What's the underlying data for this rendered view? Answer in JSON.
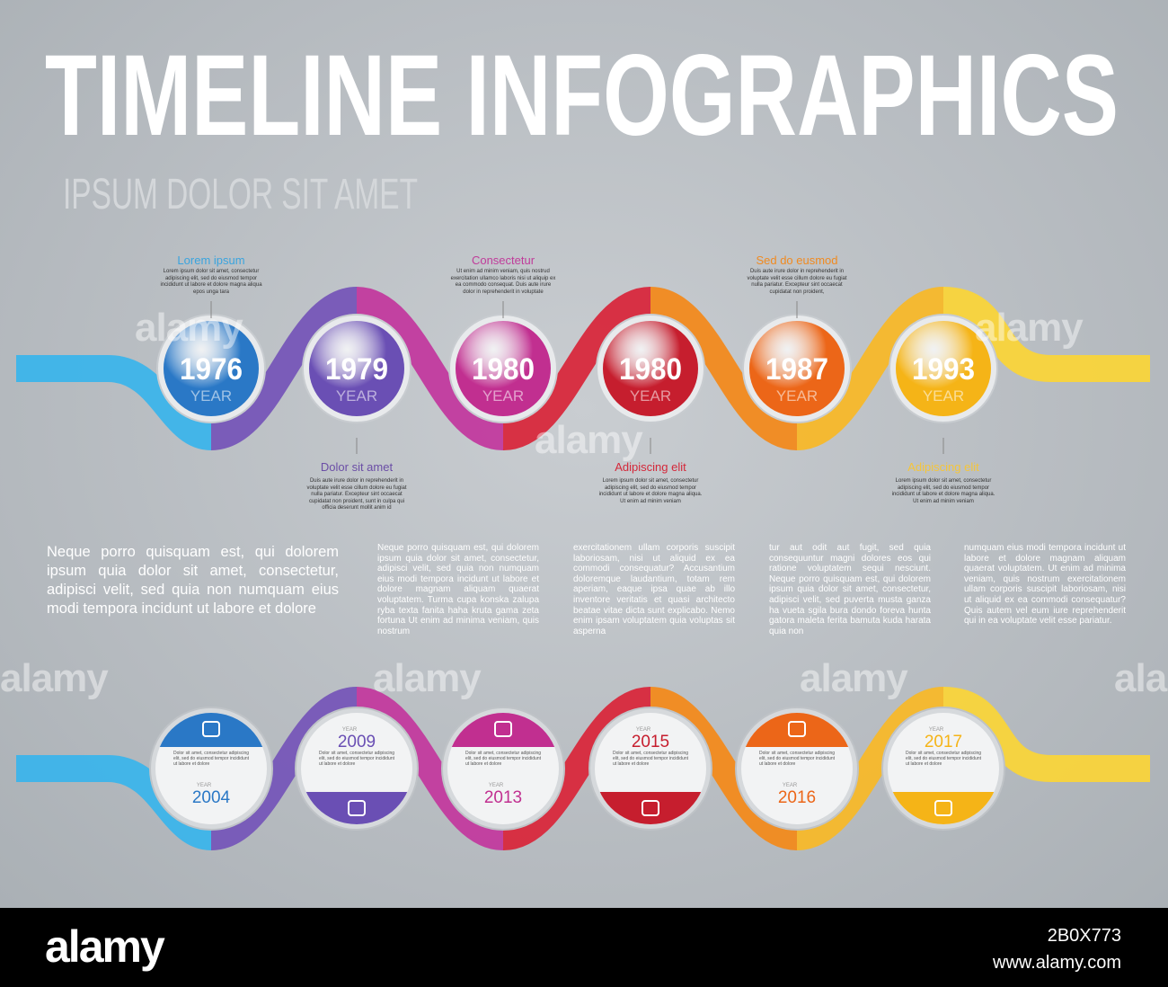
{
  "title": "TIMELINE INFOGRAPHICS",
  "subtitle": "IPSUM DOLOR SIT AMET",
  "top_timeline": [
    {
      "year": "1976",
      "year_label": "YEAR",
      "heading": "Lorem  ipsum",
      "text": "Lorem ipsum dolor sit amet, consectetur adipiscing elit, sed do eiusmod tempor incididunt ut labore et dolore magna aliqua epos unga tara"
    },
    {
      "year": "1979",
      "year_label": "YEAR",
      "heading": "Dolor sit amet",
      "text": "Duis aute irure dolor in reprehenderit in voluptate velit esse cillum dolore eu fugiat nulla pariatur. Excepteur sint occaecat cupidatat non proident, sunt in culpa qui officia deserunt mollit anim id"
    },
    {
      "year": "1980",
      "year_label": "YEAR",
      "heading": "Consectetur",
      "text": "Ut enim ad minim veniam, quis nostrud exercitation ullamco laboris nisi ut aliquip ex ea commodo consequat. Duis aute irure dolor in reprehenderit in voluptate"
    },
    {
      "year": "1980",
      "year_label": "YEAR",
      "heading": "Adipiscing elit",
      "text": "Lorem ipsum dolor sit amet, consectetur adipiscing elit, sed do eiusmod tempor incididunt ut labore et dolore magna aliqua. Ut enim ad minim veniam"
    },
    {
      "year": "1987",
      "year_label": "YEAR",
      "heading": "Sed do eusmod",
      "text": "Duis aute irure dolor in reprehenderit in voluptate velit esse cillum dolore eu fugiat nulla pariatur. Excepteur sint occaecat cupidatat non proident,"
    },
    {
      "year": "1993",
      "year_label": "YEAR",
      "heading": "Adipiscing elit",
      "text": "Lorem ipsum dolor sit amet, consectetur adipiscing elit, sed do eiusmod tempor incididunt ut labore et dolore magna aliqua. Ut enim ad minim veniam"
    }
  ],
  "paragraphs": [
    "Neque porro quisquam est, qui dolorem ipsum quia dolor sit amet, consectetur, adipisci velit, sed quia non numquam eius modi tempora incidunt ut labore et dolore",
    "Neque porro quisquam est, qui dolorem ipsum quia dolor sit amet, consectetur, adipisci velit, sed quia non numquam eius modi tempora incidunt ut labore et dolore magnam aliquam quaerat voluptatem. Turma cupa konska zalupa ryba texta fanita haha kruta gama zeta fortuna Ut enim ad minima veniam, quis nostrum",
    "exercitationem ullam corporis suscipit laboriosam, nisi ut aliquid ex ea commodi consequatur? Accusantium doloremque laudantium, totam rem aperiam, eaque ipsa quae ab illo inventore veritatis et quasi architecto beatae vitae dicta sunt explicabo. Nemo enim ipsam voluptatem quia voluptas sit asperna",
    "tur aut odit aut fugit, sed quia consequuntur magni dolores eos qui ratione voluptatem sequi nesciunt. Neque porro quisquam est, qui dolorem ipsum quia dolor sit amet, consectetur, adipisci velit, sed puverta musta ganza ha vueta sgila bura dondo foreva hunta gatora maleta ferita bamuta kuda harata quia non",
    "numquam eius modi tempora incidunt ut labore et dolore magnam aliquam quaerat voluptatem. Ut enim ad minima veniam, quis nostrum exercitationem ullam corporis suscipit laboriosam, nisi ut aliquid ex ea commodi consequatur? Quis autem vel eum iure reprehenderit qui in ea voluptate velit esse pariatur."
  ],
  "bottom_timeline": [
    {
      "year": "2004",
      "year_label": "YEAR",
      "text": "Dolor sit amet, consectetur adipiscing elit, sed do eiusmod tempor incididunt ut labore et dolore"
    },
    {
      "year": "2009",
      "year_label": "YEAR",
      "text": "Dolor sit amet, consectetur adipiscing elit, sed do eiusmod tempor incididunt ut labore et dolore"
    },
    {
      "year": "2013",
      "year_label": "YEAR",
      "text": "Dolor sit amet, consectetur adipiscing elit, sed do eiusmod tempor incididunt ut labore et dolore"
    },
    {
      "year": "2015",
      "year_label": "YEAR",
      "text": "Dolor sit amet, consectetur adipiscing elit, sed do eiusmod tempor incididunt ut labore et dolore"
    },
    {
      "year": "2016",
      "year_label": "YEAR",
      "text": "Dolor sit amet, consectetur adipiscing elit, sed do eiusmod tempor incididunt ut labore et dolore"
    },
    {
      "year": "2017",
      "year_label": "YEAR",
      "text": "Dolor sit amet, consectetur adipiscing elit, sed do eiusmod tempor incididunt ut labore et dolore"
    }
  ],
  "watermark": "alamy",
  "footer": {
    "logo": "alamy",
    "image_id": "2B0X773",
    "url": "www.alamy.com"
  }
}
